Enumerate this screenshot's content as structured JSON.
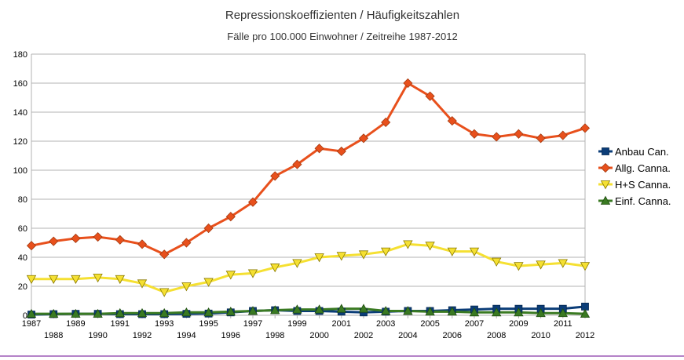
{
  "chart_data": {
    "type": "line",
    "title": "Repressionskoeffizienten / Häufigkeitszahlen",
    "subtitle": "Fälle pro 100.000 Einwohner / Zeitreihe 1987-2012",
    "xlabel": "",
    "ylabel": "",
    "ylim": [
      0,
      180
    ],
    "yticks": [
      0,
      20,
      40,
      60,
      80,
      100,
      120,
      140,
      160,
      180
    ],
    "x": [
      1987,
      1988,
      1989,
      1990,
      1991,
      1992,
      1993,
      1994,
      1995,
      1996,
      1997,
      1998,
      1999,
      2000,
      2001,
      2002,
      2003,
      2004,
      2005,
      2006,
      2007,
      2008,
      2009,
      2010,
      2011,
      2012
    ],
    "xtick_labels": [
      "1987",
      "1988",
      "1989",
      "1990",
      "1991",
      "1992",
      "1993",
      "1994",
      "1995",
      "1996",
      "1997",
      "1998",
      "1999",
      "2000",
      "2001",
      "2002",
      "2003",
      "2004",
      "2005",
      "2006",
      "2007",
      "2008",
      "2009",
      "2010",
      "2011",
      "2012"
    ],
    "grid": "horizontal",
    "legend_position": "right",
    "series": [
      {
        "name": "Anbau Can.",
        "color": "#0b3d78",
        "marker": "square",
        "values": [
          0.5,
          0.8,
          1,
          1,
          0.8,
          0.8,
          0.8,
          1,
          1.2,
          2,
          3,
          3.5,
          3,
          3,
          2.5,
          2,
          2.5,
          3,
          3,
          3.5,
          4,
          4.5,
          4.5,
          4.5,
          4.5,
          6
        ]
      },
      {
        "name": "Allg. Canna.",
        "color": "#e8501c",
        "marker": "diamond",
        "values": [
          48,
          51,
          53,
          54,
          52,
          49,
          42,
          50,
          60,
          68,
          78,
          96,
          104,
          115,
          113,
          122,
          133,
          160,
          151,
          134,
          125,
          123,
          125,
          122,
          124,
          129
        ]
      },
      {
        "name": "H+S Canna.",
        "color": "#f5e032",
        "marker": "triangle-down",
        "values": [
          25,
          25,
          25,
          26,
          25,
          22,
          16,
          20,
          23,
          28,
          29,
          33,
          36,
          40,
          41,
          42,
          44,
          49,
          48,
          44,
          44,
          37,
          34,
          35,
          36,
          34
        ]
      },
      {
        "name": "Einf. Canna.",
        "color": "#3a7a22",
        "marker": "triangle-up",
        "values": [
          1,
          1,
          1,
          1,
          1.5,
          1.5,
          1.5,
          2,
          2,
          2.5,
          3,
          3.5,
          4,
          4,
          4.5,
          4.5,
          3,
          3,
          2.5,
          2.5,
          2,
          2,
          2,
          1.5,
          1.5,
          1
        ]
      }
    ]
  }
}
